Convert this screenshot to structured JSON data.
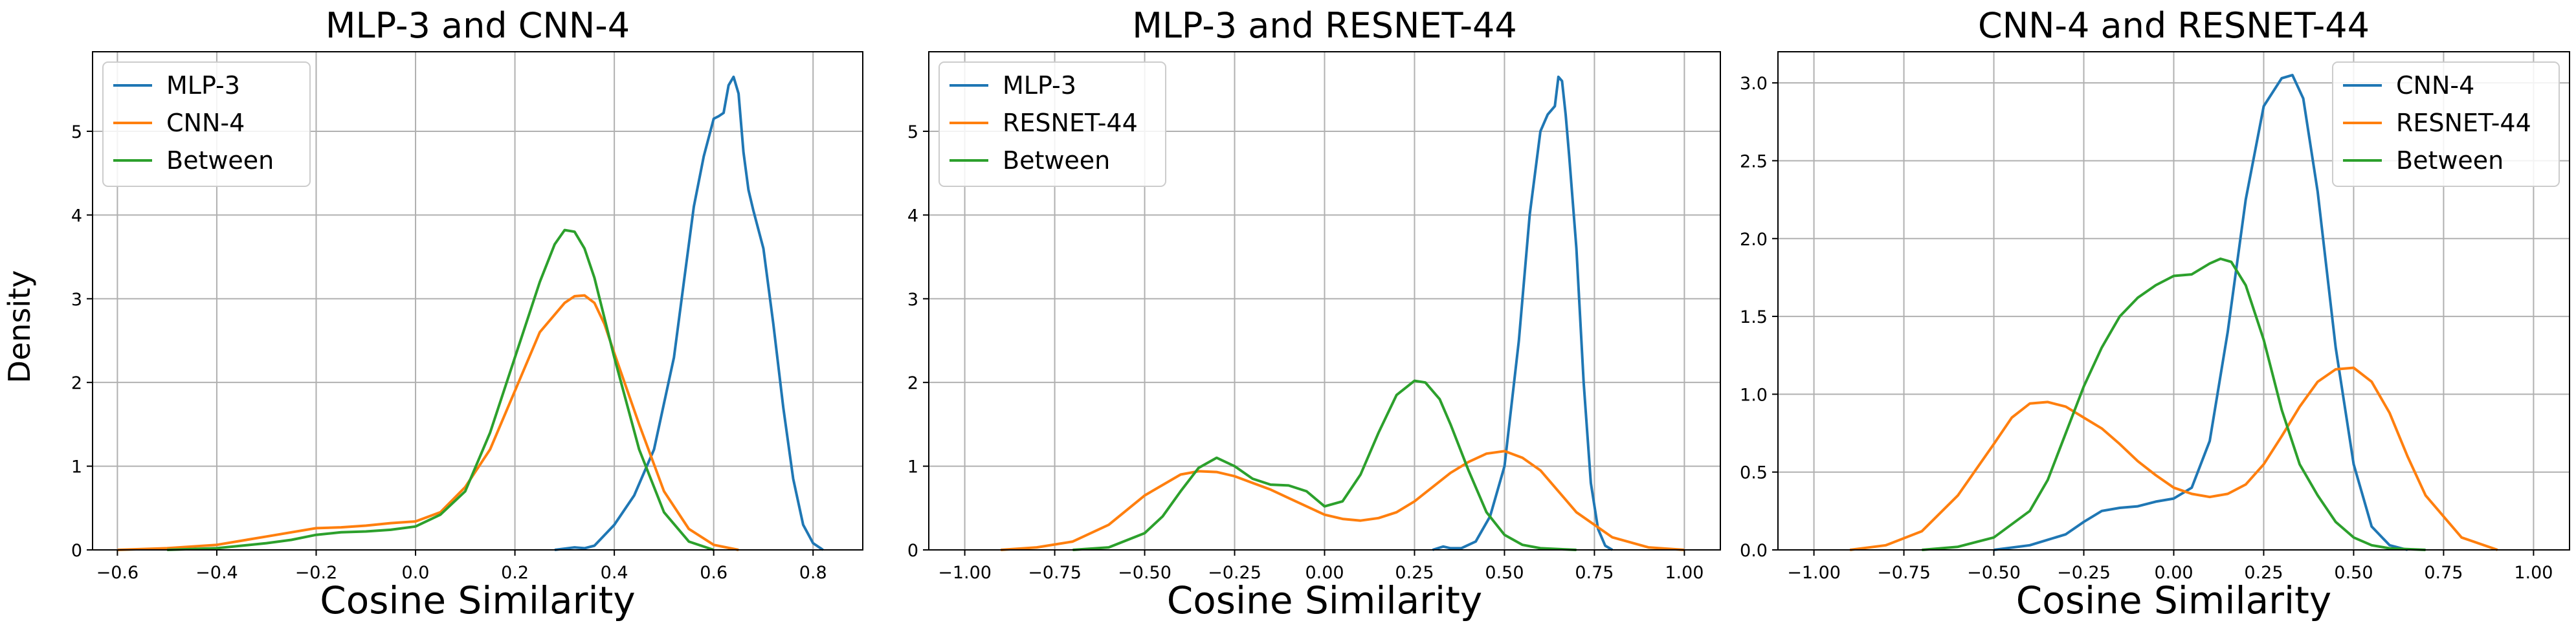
{
  "figure": {
    "ylabel": "Density",
    "xlabel": "Cosine Similarity"
  },
  "chart_data": [
    {
      "type": "line",
      "title": "MLP-3 and CNN-4",
      "xlabel": "Cosine Similarity",
      "ylabel": "Density",
      "xlim": [
        -0.65,
        0.9
      ],
      "ylim": [
        0,
        5.95
      ],
      "xticks": [
        -0.6,
        -0.4,
        -0.2,
        0.0,
        0.2,
        0.4,
        0.6,
        0.8
      ],
      "xtick_labels": [
        "−0.6",
        "−0.4",
        "−0.2",
        "0.0",
        "0.2",
        "0.4",
        "0.6",
        "0.8"
      ],
      "yticks": [
        0,
        1,
        2,
        3,
        4,
        5
      ],
      "ytick_labels": [
        "0",
        "1",
        "2",
        "3",
        "4",
        "5"
      ],
      "grid": true,
      "legend": "upper left",
      "series": [
        {
          "name": "MLP-3",
          "color": "#1f77b4",
          "x": [
            0.28,
            0.32,
            0.34,
            0.36,
            0.4,
            0.44,
            0.48,
            0.52,
            0.54,
            0.56,
            0.58,
            0.6,
            0.61,
            0.62,
            0.63,
            0.64,
            0.65,
            0.66,
            0.67,
            0.68,
            0.7,
            0.72,
            0.74,
            0.76,
            0.78,
            0.8,
            0.82
          ],
          "y": [
            0.0,
            0.03,
            0.02,
            0.05,
            0.3,
            0.65,
            1.2,
            2.3,
            3.2,
            4.1,
            4.7,
            5.15,
            5.18,
            5.22,
            5.55,
            5.65,
            5.45,
            4.75,
            4.3,
            4.05,
            3.6,
            2.7,
            1.7,
            0.85,
            0.3,
            0.08,
            0.0
          ]
        },
        {
          "name": "CNN-4",
          "color": "#ff7f0e",
          "x": [
            -0.6,
            -0.5,
            -0.4,
            -0.3,
            -0.25,
            -0.2,
            -0.15,
            -0.1,
            -0.05,
            0.0,
            0.05,
            0.1,
            0.15,
            0.2,
            0.25,
            0.3,
            0.32,
            0.34,
            0.36,
            0.38,
            0.4,
            0.45,
            0.5,
            0.55,
            0.6,
            0.65
          ],
          "y": [
            0.0,
            0.02,
            0.06,
            0.16,
            0.21,
            0.26,
            0.27,
            0.29,
            0.32,
            0.34,
            0.45,
            0.75,
            1.2,
            1.9,
            2.6,
            2.95,
            3.03,
            3.04,
            2.95,
            2.7,
            2.35,
            1.5,
            0.7,
            0.25,
            0.06,
            0.0
          ]
        },
        {
          "name": "Between",
          "color": "#2ca02c",
          "x": [
            -0.5,
            -0.4,
            -0.3,
            -0.25,
            -0.2,
            -0.15,
            -0.1,
            -0.05,
            0.0,
            0.05,
            0.1,
            0.15,
            0.2,
            0.25,
            0.28,
            0.3,
            0.32,
            0.34,
            0.36,
            0.4,
            0.45,
            0.5,
            0.55,
            0.6
          ],
          "y": [
            0.0,
            0.02,
            0.08,
            0.12,
            0.18,
            0.21,
            0.22,
            0.24,
            0.28,
            0.42,
            0.7,
            1.4,
            2.3,
            3.2,
            3.65,
            3.82,
            3.8,
            3.6,
            3.25,
            2.3,
            1.2,
            0.45,
            0.1,
            0.0
          ]
        }
      ]
    },
    {
      "type": "line",
      "title": "MLP-3 and RESNET-44",
      "xlabel": "Cosine Similarity",
      "ylabel": "",
      "xlim": [
        -1.1,
        1.1
      ],
      "ylim": [
        0,
        5.95
      ],
      "xticks": [
        -1.0,
        -0.75,
        -0.5,
        -0.25,
        0.0,
        0.25,
        0.5,
        0.75,
        1.0
      ],
      "xtick_labels": [
        "−1.00",
        "−0.75",
        "−0.50",
        "−0.25",
        "0.00",
        "0.25",
        "0.50",
        "0.75",
        "1.00"
      ],
      "yticks": [
        0,
        1,
        2,
        3,
        4,
        5
      ],
      "ytick_labels": [
        "0",
        "1",
        "2",
        "3",
        "4",
        "5"
      ],
      "grid": true,
      "legend": "upper left",
      "series": [
        {
          "name": "MLP-3",
          "color": "#1f77b4",
          "x": [
            0.3,
            0.33,
            0.35,
            0.38,
            0.42,
            0.46,
            0.5,
            0.54,
            0.57,
            0.6,
            0.62,
            0.64,
            0.65,
            0.66,
            0.67,
            0.68,
            0.7,
            0.72,
            0.74,
            0.76,
            0.78,
            0.8
          ],
          "y": [
            0.0,
            0.04,
            0.02,
            0.02,
            0.1,
            0.4,
            1.0,
            2.5,
            4.0,
            5.0,
            5.2,
            5.3,
            5.65,
            5.6,
            5.2,
            4.7,
            3.6,
            2.0,
            0.8,
            0.25,
            0.05,
            0.0
          ]
        },
        {
          "name": "RESNET-44",
          "color": "#ff7f0e",
          "x": [
            -0.9,
            -0.8,
            -0.7,
            -0.6,
            -0.5,
            -0.4,
            -0.35,
            -0.3,
            -0.25,
            -0.2,
            -0.15,
            -0.1,
            -0.05,
            0.0,
            0.05,
            0.1,
            0.15,
            0.2,
            0.25,
            0.3,
            0.35,
            0.4,
            0.45,
            0.5,
            0.55,
            0.6,
            0.65,
            0.7,
            0.8,
            0.9,
            1.0
          ],
          "y": [
            0.0,
            0.03,
            0.1,
            0.3,
            0.65,
            0.9,
            0.94,
            0.93,
            0.88,
            0.8,
            0.72,
            0.62,
            0.52,
            0.42,
            0.37,
            0.35,
            0.38,
            0.45,
            0.58,
            0.75,
            0.92,
            1.05,
            1.15,
            1.18,
            1.1,
            0.95,
            0.7,
            0.45,
            0.15,
            0.03,
            0.0
          ]
        },
        {
          "name": "Between",
          "color": "#2ca02c",
          "x": [
            -0.7,
            -0.6,
            -0.5,
            -0.45,
            -0.4,
            -0.35,
            -0.3,
            -0.25,
            -0.2,
            -0.15,
            -0.1,
            -0.05,
            0.0,
            0.05,
            0.1,
            0.15,
            0.2,
            0.25,
            0.28,
            0.32,
            0.35,
            0.4,
            0.45,
            0.5,
            0.55,
            0.6,
            0.7
          ],
          "y": [
            0.0,
            0.03,
            0.2,
            0.4,
            0.7,
            0.98,
            1.1,
            1.0,
            0.85,
            0.78,
            0.77,
            0.7,
            0.52,
            0.58,
            0.9,
            1.4,
            1.85,
            2.02,
            2.0,
            1.8,
            1.5,
            0.95,
            0.45,
            0.18,
            0.06,
            0.02,
            0.0
          ]
        }
      ]
    },
    {
      "type": "line",
      "title": "CNN-4 and RESNET-44",
      "xlabel": "Cosine Similarity",
      "ylabel": "",
      "xlim": [
        -1.1,
        1.1
      ],
      "ylim": [
        0,
        3.2
      ],
      "xticks": [
        -1.0,
        -0.75,
        -0.5,
        -0.25,
        0.0,
        0.25,
        0.5,
        0.75,
        1.0
      ],
      "xtick_labels": [
        "−1.00",
        "−0.75",
        "−0.50",
        "−0.25",
        "0.00",
        "0.25",
        "0.50",
        "0.75",
        "1.00"
      ],
      "yticks": [
        0.0,
        0.5,
        1.0,
        1.5,
        2.0,
        2.5,
        3.0
      ],
      "ytick_labels": [
        "0.0",
        "0.5",
        "1.0",
        "1.5",
        "2.0",
        "2.5",
        "3.0"
      ],
      "grid": true,
      "legend": "upper right",
      "series": [
        {
          "name": "CNN-4",
          "color": "#1f77b4",
          "x": [
            -0.5,
            -0.4,
            -0.3,
            -0.25,
            -0.2,
            -0.15,
            -0.1,
            -0.05,
            0.0,
            0.05,
            0.1,
            0.15,
            0.2,
            0.25,
            0.3,
            0.33,
            0.36,
            0.4,
            0.45,
            0.5,
            0.55,
            0.6,
            0.65
          ],
          "y": [
            0.0,
            0.03,
            0.1,
            0.18,
            0.25,
            0.27,
            0.28,
            0.31,
            0.33,
            0.4,
            0.7,
            1.4,
            2.25,
            2.85,
            3.03,
            3.05,
            2.9,
            2.3,
            1.3,
            0.55,
            0.15,
            0.03,
            0.0
          ]
        },
        {
          "name": "RESNET-44",
          "color": "#ff7f0e",
          "x": [
            -0.9,
            -0.8,
            -0.7,
            -0.6,
            -0.5,
            -0.45,
            -0.4,
            -0.35,
            -0.3,
            -0.25,
            -0.2,
            -0.15,
            -0.1,
            -0.05,
            0.0,
            0.05,
            0.1,
            0.15,
            0.2,
            0.25,
            0.3,
            0.35,
            0.4,
            0.45,
            0.5,
            0.55,
            0.6,
            0.65,
            0.7,
            0.8,
            0.9
          ],
          "y": [
            0.0,
            0.03,
            0.12,
            0.35,
            0.68,
            0.85,
            0.94,
            0.95,
            0.92,
            0.85,
            0.78,
            0.68,
            0.57,
            0.48,
            0.4,
            0.36,
            0.34,
            0.36,
            0.42,
            0.55,
            0.73,
            0.92,
            1.08,
            1.16,
            1.17,
            1.08,
            0.88,
            0.6,
            0.35,
            0.08,
            0.0
          ]
        },
        {
          "name": "Between",
          "color": "#2ca02c",
          "x": [
            -0.7,
            -0.6,
            -0.5,
            -0.4,
            -0.35,
            -0.3,
            -0.25,
            -0.2,
            -0.15,
            -0.1,
            -0.05,
            0.0,
            0.05,
            0.1,
            0.13,
            0.16,
            0.2,
            0.25,
            0.3,
            0.35,
            0.4,
            0.45,
            0.5,
            0.55,
            0.6,
            0.7
          ],
          "y": [
            0.0,
            0.02,
            0.08,
            0.25,
            0.45,
            0.75,
            1.05,
            1.3,
            1.5,
            1.62,
            1.7,
            1.76,
            1.77,
            1.84,
            1.87,
            1.85,
            1.7,
            1.35,
            0.9,
            0.55,
            0.35,
            0.18,
            0.08,
            0.03,
            0.01,
            0.0
          ]
        }
      ]
    }
  ]
}
